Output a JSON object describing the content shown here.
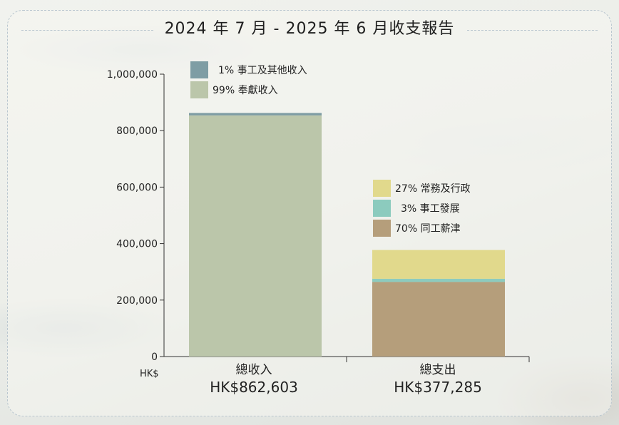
{
  "title": "2024 年 7 月 - 2025 年 6 月收支報告",
  "colors": {
    "donations": "#bbc6aa",
    "other_income": "#7e9da4",
    "operations": "#e1d98c",
    "development": "#8ccbbe",
    "salaries": "#b59e7b"
  },
  "chart_data": {
    "type": "bar",
    "stacked": true,
    "y_unit_label": "HK$",
    "ylim": [
      0,
      1000000
    ],
    "y_ticks": [
      {
        "value": 0,
        "label": "0"
      },
      {
        "value": 200000,
        "label": "200,000"
      },
      {
        "value": 400000,
        "label": "400,000"
      },
      {
        "value": 600000,
        "label": "600,000"
      },
      {
        "value": 800000,
        "label": "800,000"
      },
      {
        "value": 1000000,
        "label": "1,000,000"
      }
    ],
    "grid": false,
    "bars": [
      {
        "category": "總收入",
        "total_label": "HK$862,603",
        "total": 862603,
        "legend_position": "top",
        "segments": [
          {
            "name": "奉獻收入",
            "pct_label": "99%",
            "value": 853977,
            "color_key": "donations"
          },
          {
            "name": "事工及其他收入",
            "pct_label": "1%",
            "value": 8626,
            "color_key": "other_income"
          }
        ]
      },
      {
        "category": "總支出",
        "total_label": "HK$377,285",
        "total": 377285,
        "legend_position": "above-bar",
        "segments": [
          {
            "name": "同工薪津",
            "pct_label": "70%",
            "value": 264100,
            "color_key": "salaries"
          },
          {
            "name": "事工發展",
            "pct_label": "3%",
            "value": 11319,
            "color_key": "development"
          },
          {
            "name": "常務及行政",
            "pct_label": "27%",
            "value": 101866,
            "color_key": "operations"
          }
        ]
      }
    ]
  }
}
